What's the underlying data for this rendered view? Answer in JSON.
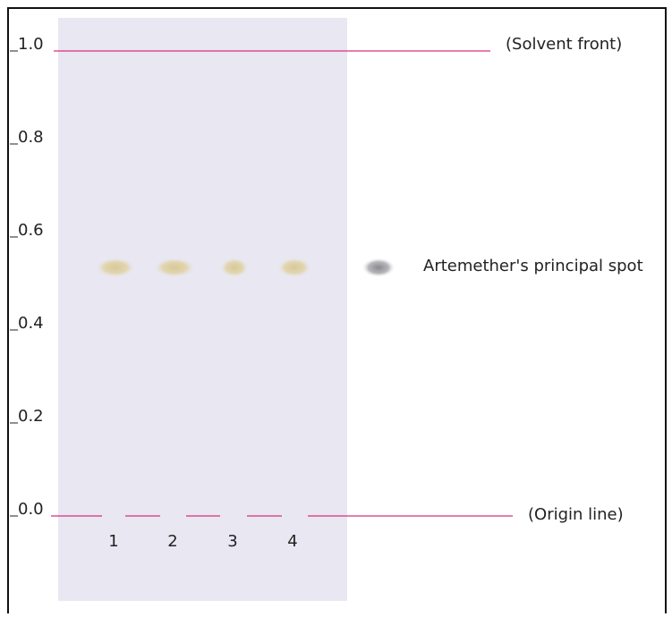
{
  "scale": {
    "ticks": [
      {
        "value": 1,
        "label": "1.0"
      },
      0.8,
      0.6,
      0.4,
      0.2,
      {
        "value": 0,
        "label": "0.0"
      }
    ]
  },
  "solvent_front": {
    "label": "(Solvent front)",
    "rf": 1
  },
  "origin_line": {
    "label": "(Origin line)",
    "rf": 0
  },
  "lanes": [
    {
      "label": "1",
      "rf": 0.54
    },
    {
      "label": "2",
      "rf": 0.54
    },
    {
      "label": "3",
      "rf": 0.54
    },
    {
      "label": "4",
      "rf": 0.54
    }
  ],
  "reference_spot": {
    "label": "Artemether's principal spot",
    "rf": 0.54
  }
}
